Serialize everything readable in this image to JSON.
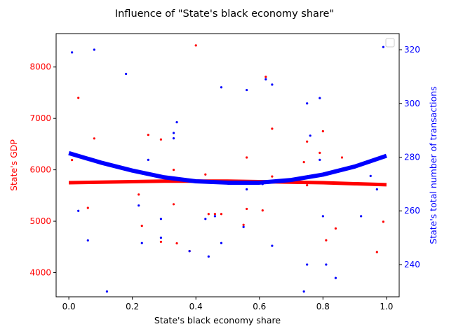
{
  "chart_data": {
    "type": "scatter",
    "title": "Influence of \"State's black economy share\"",
    "xlabel": "State's black economy share",
    "xlim": [
      -0.04,
      1.04
    ],
    "xticks": [
      "0.0",
      "0.2",
      "0.4",
      "0.6",
      "0.8",
      "1.0"
    ],
    "left_axis": {
      "label": "State's GDP",
      "color": "#ff0000",
      "ylim": [
        3530,
        8650
      ],
      "ticks": [
        "4000",
        "5000",
        "6000",
        "7000",
        "8000"
      ]
    },
    "right_axis": {
      "label": "State's total number of transactions",
      "color": "#0000ff",
      "ylim": [
        228,
        326
      ],
      "ticks": [
        "240",
        "260",
        "280",
        "300",
        "320"
      ]
    },
    "legend": {
      "placement": "top-right",
      "entries": []
    },
    "series": [
      {
        "axis": "left",
        "color": "#ff0000",
        "x": [
          0.01,
          0.03,
          0.06,
          0.08,
          0.22,
          0.23,
          0.25,
          0.29,
          0.29,
          0.33,
          0.33,
          0.34,
          0.38,
          0.4,
          0.43,
          0.44,
          0.46,
          0.48,
          0.55,
          0.56,
          0.56,
          0.61,
          0.62,
          0.64,
          0.64,
          0.74,
          0.75,
          0.75,
          0.79,
          0.8,
          0.81,
          0.84,
          0.86,
          0.95,
          0.97,
          0.99
        ],
        "y": [
          6190,
          7400,
          5260,
          6610,
          5520,
          4910,
          6680,
          4600,
          6590,
          6000,
          5330,
          4570,
          4420,
          8420,
          5910,
          5140,
          5140,
          5140,
          4930,
          6240,
          5240,
          5210,
          7810,
          6800,
          5870,
          6150,
          6550,
          5700,
          6330,
          6750,
          4630,
          4860,
          6240,
          6150,
          4400,
          4990
        ]
      },
      {
        "axis": "left",
        "color": "#ff0000",
        "fit": "poly2",
        "x": [
          0.0,
          0.1,
          0.2,
          0.3,
          0.4,
          0.5,
          0.6,
          0.7,
          0.8,
          0.9,
          1.0
        ],
        "y": [
          5750,
          5760,
          5770,
          5780,
          5780,
          5780,
          5770,
          5760,
          5750,
          5730,
          5710
        ]
      },
      {
        "axis": "right",
        "color": "#0000ff",
        "x": [
          0.01,
          0.03,
          0.06,
          0.08,
          0.12,
          0.18,
          0.22,
          0.23,
          0.25,
          0.29,
          0.29,
          0.33,
          0.33,
          0.34,
          0.38,
          0.4,
          0.43,
          0.44,
          0.46,
          0.48,
          0.48,
          0.55,
          0.56,
          0.56,
          0.61,
          0.62,
          0.64,
          0.64,
          0.74,
          0.75,
          0.75,
          0.76,
          0.79,
          0.79,
          0.8,
          0.81,
          0.84,
          0.86,
          0.92,
          0.95,
          0.97,
          0.99
        ],
        "y": [
          319,
          260,
          249,
          320,
          230,
          311,
          262,
          248,
          279,
          257,
          250,
          287,
          289,
          293,
          245,
          271,
          257,
          243,
          258,
          248,
          306,
          254,
          305,
          268,
          270,
          309,
          307,
          247,
          230,
          300,
          240,
          288,
          302,
          279,
          258,
          240,
          235,
          275,
          258,
          273,
          268,
          321
        ]
      },
      {
        "axis": "right",
        "color": "#0000ff",
        "fit": "poly2",
        "x": [
          0.0,
          0.1,
          0.2,
          0.3,
          0.4,
          0.5,
          0.6,
          0.7,
          0.8,
          0.9,
          1.0
        ],
        "y": [
          281.5,
          278.0,
          275.0,
          272.5,
          271.0,
          270.5,
          270.5,
          271.5,
          273.5,
          276.5,
          280.5
        ]
      }
    ]
  }
}
